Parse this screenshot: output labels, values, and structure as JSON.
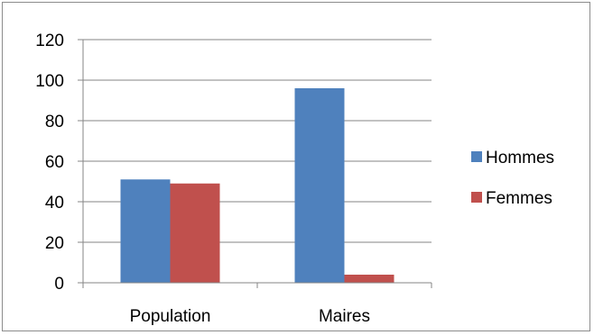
{
  "chart_data": {
    "type": "bar",
    "title": "",
    "xlabel": "",
    "ylabel": "",
    "categories": [
      "Population",
      "Maires"
    ],
    "series": [
      {
        "name": "Hommes",
        "values": [
          51,
          96
        ],
        "color": "#4f81bd"
      },
      {
        "name": "Femmes",
        "values": [
          49,
          4
        ],
        "color": "#c0504d"
      }
    ],
    "ylim": [
      0,
      120
    ],
    "yticks": [
      "0",
      "20",
      "40",
      "60",
      "80",
      "100",
      "120"
    ],
    "grid": true,
    "legend_position": "right"
  }
}
